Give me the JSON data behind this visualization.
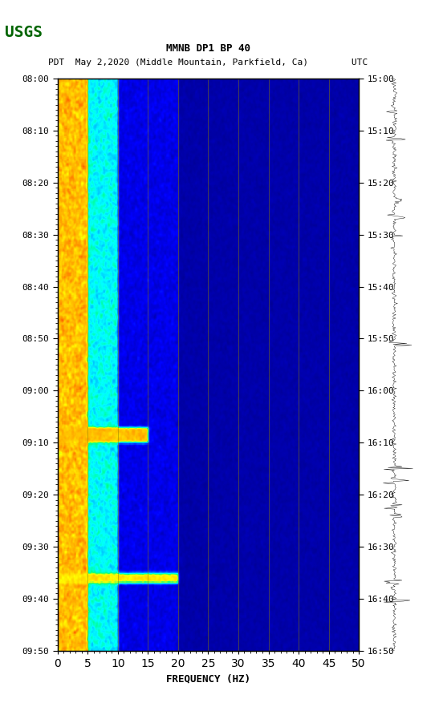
{
  "title_line1": "MMNB DP1 BP 40",
  "title_line2": "PDT  May 2,2020 (Middle Mountain, Parkfield, Ca)        UTC",
  "xlabel": "FREQUENCY (HZ)",
  "left_times": [
    "08:00",
    "08:10",
    "08:20",
    "08:30",
    "08:40",
    "08:50",
    "09:00",
    "09:10",
    "09:20",
    "09:30",
    "09:40",
    "09:50"
  ],
  "right_times": [
    "15:00",
    "15:10",
    "15:20",
    "15:30",
    "15:40",
    "15:50",
    "16:00",
    "16:10",
    "16:20",
    "16:30",
    "16:40",
    "16:50"
  ],
  "freq_min": 0,
  "freq_max": 50,
  "freq_ticks": [
    0,
    5,
    10,
    15,
    20,
    25,
    30,
    35,
    40,
    45,
    50
  ],
  "n_freq_gridlines": 9,
  "freq_gridlines": [
    5,
    10,
    15,
    20,
    25,
    30,
    35,
    40,
    45
  ],
  "background_color": "#ffffff",
  "spectrogram_bg": "#00008B",
  "fig_width": 5.52,
  "fig_height": 8.92
}
